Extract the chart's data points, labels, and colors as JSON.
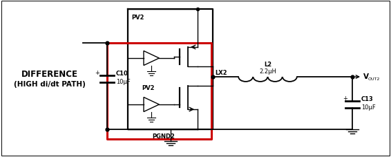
{
  "bg_color": "#ffffff",
  "black": "#000000",
  "red": "#cc0000",
  "fig_width": 5.66,
  "fig_height": 2.28,
  "dpi": 100,
  "text_DIFFERENCE": "DIFFERENCE",
  "text_HIGH": "(HIGH di/dt PATH)",
  "text_C10": "C10",
  "text_10uF": "10μF",
  "text_PV2": "PV2",
  "text_LX2": "LX2",
  "text_PGND2": "PGND2",
  "text_L2": "L2",
  "text_22uH": "2.2μH",
  "text_VOUT2_V": "V",
  "text_VOUT2_sub": "OUT2",
  "text_C13": "C13",
  "text_10uF_2": "10μF"
}
